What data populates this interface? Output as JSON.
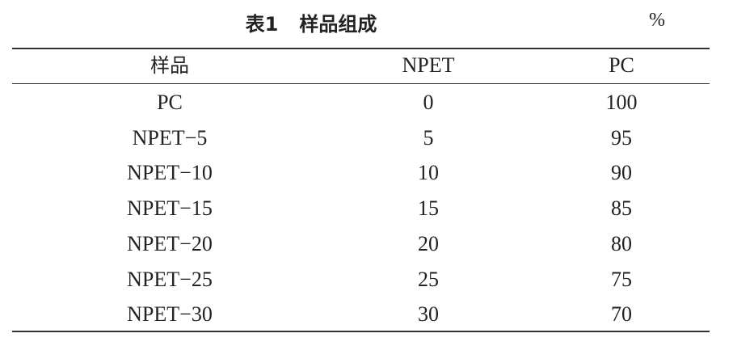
{
  "table": {
    "label": "表1",
    "title": "样品组成",
    "unit": "%",
    "columns": [
      "样品",
      "NPET",
      "PC"
    ],
    "rows": [
      [
        "PC",
        "0",
        "100"
      ],
      [
        "NPET−5",
        "5",
        "95"
      ],
      [
        "NPET−10",
        "10",
        "90"
      ],
      [
        "NPET−15",
        "15",
        "85"
      ],
      [
        "NPET−20",
        "20",
        "80"
      ],
      [
        "NPET−25",
        "25",
        "75"
      ],
      [
        "NPET−30",
        "30",
        "70"
      ]
    ]
  }
}
